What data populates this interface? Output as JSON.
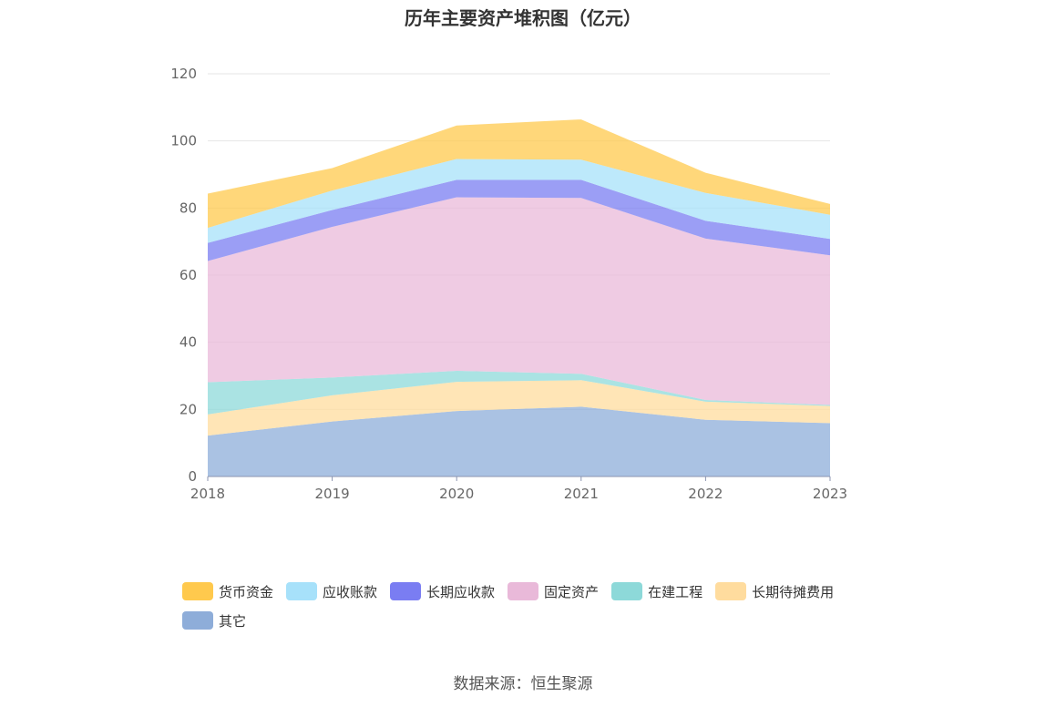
{
  "title": "历年主要资产堆积图（亿元）",
  "source": "数据来源：恒生聚源",
  "chart_data": {
    "type": "area",
    "stacked": true,
    "title": "历年主要资产堆积图（亿元）",
    "x": [
      "2018",
      "2019",
      "2020",
      "2021",
      "2022",
      "2023"
    ],
    "ylim": [
      0,
      120
    ],
    "yticks": [
      0,
      20,
      40,
      60,
      80,
      100,
      120
    ],
    "grid": true,
    "legend_position": "bottom",
    "series": [
      {
        "name": "其它",
        "color": "#8eadd9",
        "values": [
          12.2,
          16.4,
          19.5,
          20.8,
          16.9,
          15.9
        ]
      },
      {
        "name": "长期待摊费用",
        "color": "#ffdc9e",
        "values": [
          6.3,
          7.8,
          8.7,
          7.9,
          5.4,
          5.1
        ]
      },
      {
        "name": "在建工程",
        "color": "#8dd9d9",
        "values": [
          9.6,
          5.3,
          3.3,
          1.9,
          0.5,
          0.3
        ]
      },
      {
        "name": "固定资产",
        "color": "#e9b9d9",
        "values": [
          36.1,
          44.9,
          51.7,
          52.4,
          48.1,
          44.6
        ]
      },
      {
        "name": "长期应收款",
        "color": "#7a7df2",
        "values": [
          5.4,
          5.0,
          5.2,
          5.4,
          5.3,
          4.9
        ]
      },
      {
        "name": "应收账款",
        "color": "#a7e1fa",
        "values": [
          4.5,
          5.8,
          6.2,
          6.0,
          8.3,
          7.2
        ]
      },
      {
        "name": "货币资金",
        "color": "#ffc94d",
        "values": [
          10.2,
          6.7,
          10.0,
          12.0,
          6.0,
          3.2
        ]
      }
    ],
    "legend_order": [
      "货币资金",
      "应收账款",
      "长期应收款",
      "固定资产",
      "在建工程",
      "长期待摊费用",
      "其它"
    ]
  }
}
